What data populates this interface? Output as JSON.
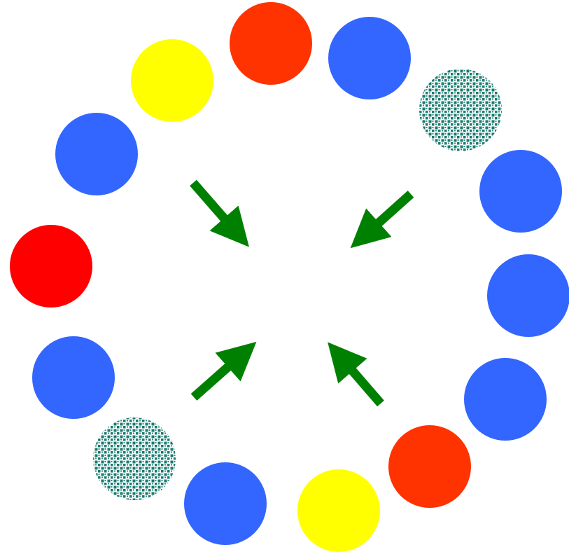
{
  "colors": {
    "blue": "#3366ff",
    "red": "#ff0000",
    "orange_red": "#ff3300",
    "yellow": "#ffff00",
    "teal_pattern": "#1a7a6e",
    "arrow_green": "#008000",
    "background": "#ffffff"
  },
  "circles": [
    {
      "id": "circle-orange-top",
      "fill": "orange_red"
    },
    {
      "id": "circle-blue-top-right",
      "fill": "blue"
    },
    {
      "id": "circle-patterned-top-right",
      "fill": "pattern"
    },
    {
      "id": "circle-blue-right-upper",
      "fill": "blue"
    },
    {
      "id": "circle-blue-right",
      "fill": "blue"
    },
    {
      "id": "circle-blue-right-lower",
      "fill": "blue"
    },
    {
      "id": "circle-orange-bottom-right",
      "fill": "orange_red"
    },
    {
      "id": "circle-yellow-bottom",
      "fill": "yellow"
    },
    {
      "id": "circle-blue-bottom",
      "fill": "blue"
    },
    {
      "id": "circle-patterned-bottom-left",
      "fill": "pattern"
    },
    {
      "id": "circle-blue-left-lower",
      "fill": "blue"
    },
    {
      "id": "circle-red-left",
      "fill": "red"
    },
    {
      "id": "circle-blue-left-upper",
      "fill": "blue"
    },
    {
      "id": "circle-yellow-top-left",
      "fill": "yellow"
    }
  ],
  "arrows": [
    {
      "id": "arrow-top-left",
      "direction": "down-right"
    },
    {
      "id": "arrow-top-right",
      "direction": "down-left"
    },
    {
      "id": "arrow-bottom-left",
      "direction": "up-right"
    },
    {
      "id": "arrow-bottom-right",
      "direction": "up-left"
    }
  ]
}
